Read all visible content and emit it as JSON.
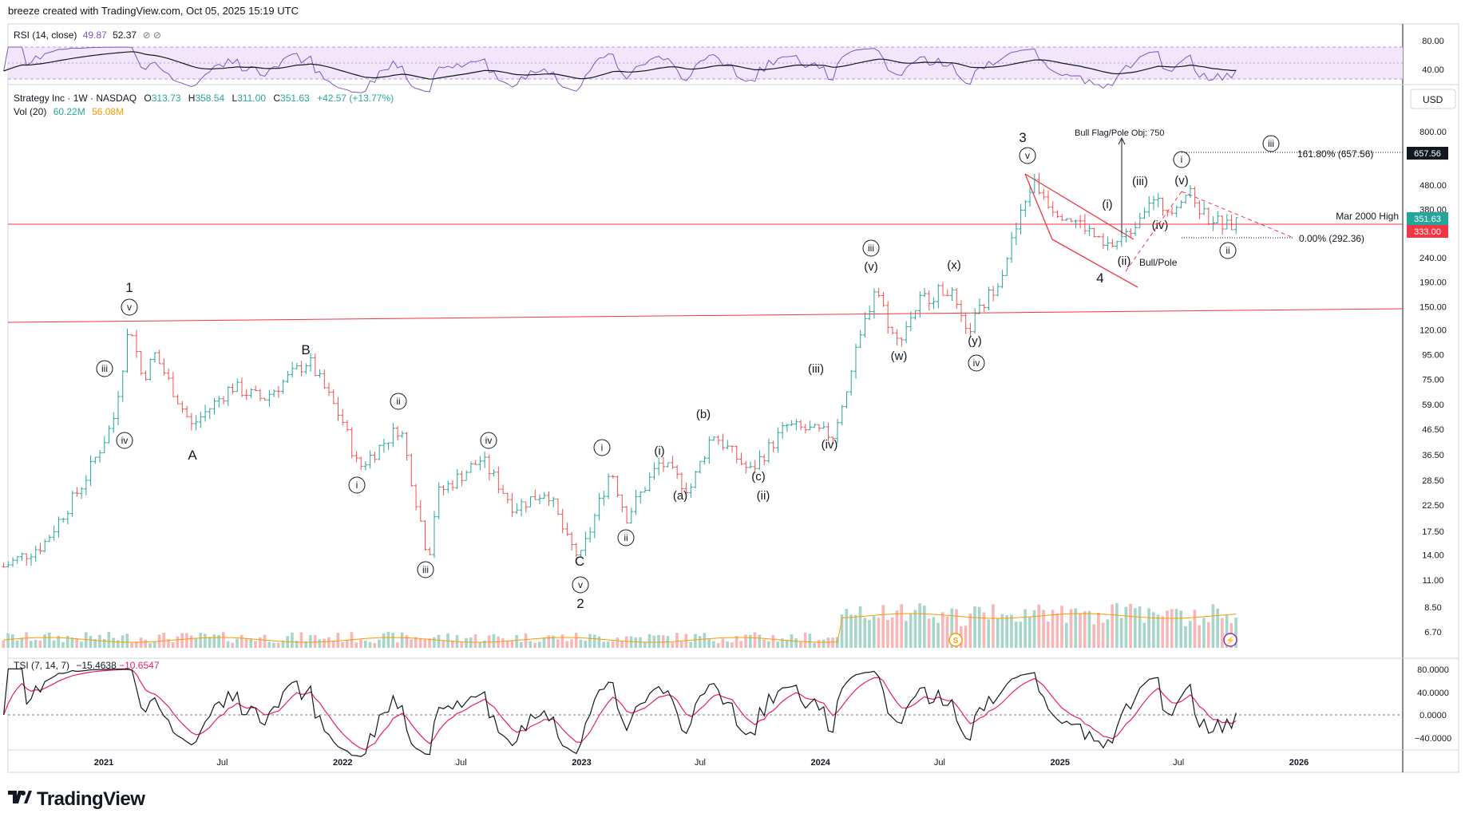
{
  "header": {
    "credit": "breeze created with TradingView.com, Oct 05, 2025 15:19 UTC"
  },
  "footer": {
    "brand": "TradingView",
    "logo_icon": "tradingview-logo-icon"
  },
  "colors": {
    "up": "#26a69a",
    "down": "#ef5350",
    "vol_up": "#a5d6c9",
    "vol_down": "#f7b7b7",
    "rsi_band_fill": "#f3e6fb",
    "rsi_line": "#7e57c2",
    "rsi_ma": "#131722",
    "hline": "#f23645",
    "tsi_line": "#131722",
    "tsi_signal": "#e91e63",
    "vol_ma": "#ff9800",
    "price_box": "#26a69a",
    "level_box": "#f23645",
    "target_box": "#131722"
  },
  "legend": {
    "rsi": {
      "name": "RSI (14, close)",
      "v1": "49.87",
      "v2": "52.37",
      "icons": "⊘ ⊘"
    },
    "main": {
      "symbol": "Strategy Inc · 1W · NASDAQ",
      "o_label": "O",
      "o": "313.73",
      "h_label": "H",
      "h": "358.54",
      "l_label": "L",
      "l": "311.00",
      "c_label": "C",
      "c": "351.63",
      "chg": "+42.57 (+13.77%)"
    },
    "vol": {
      "name": "Vol (20)",
      "v1": "60.22M",
      "v2": "56.08M"
    },
    "tsi": {
      "name": "TSI (7, 14, 7)",
      "v1": "−15.4638",
      "v2": "−10.6547"
    }
  },
  "axes": {
    "currency": "USD",
    "rsi_ticks": [
      "80.00",
      "40.00"
    ],
    "price_ticks": [
      "800.00",
      "480.00",
      "380.00",
      "240.00",
      "190.00",
      "150.00",
      "120.00",
      "95.00",
      "75.00",
      "59.00",
      "46.50",
      "36.50",
      "28.50",
      "22.50",
      "17.50",
      "14.00",
      "11.00",
      "8.50",
      "6.70"
    ],
    "tsi_ticks": [
      "80.0000",
      "40.0000",
      "0.0000",
      "−40.0000"
    ],
    "time_ticks": [
      "2021",
      "Jul",
      "2022",
      "Jul",
      "2023",
      "Jul",
      "2024",
      "Jul",
      "2025",
      "Jul",
      "2026"
    ]
  },
  "price_labels": {
    "last": "351.63",
    "level": "333.00",
    "target": "657.56"
  },
  "annotations": {
    "mar2000": "Mar 2000 High",
    "fib161": "161.80% (657.56)",
    "fib0": "0.00% (292.36)",
    "bullflag": "Bull Flag/Pole Obj: 750",
    "bullpole": "Bull/Pole",
    "waves": [
      {
        "t": "1",
        "c": false
      },
      {
        "t": "v",
        "c": true
      },
      {
        "t": "iii",
        "c": true
      },
      {
        "t": "iv",
        "c": true
      },
      {
        "t": "A",
        "c": false
      },
      {
        "t": "B",
        "c": false
      },
      {
        "t": "ii",
        "c": true
      },
      {
        "t": "i",
        "c": true
      },
      {
        "t": "iii",
        "c": true
      },
      {
        "t": "iv",
        "c": true
      },
      {
        "t": "C",
        "c": false
      },
      {
        "t": "v",
        "c": true
      },
      {
        "t": "2",
        "c": false
      },
      {
        "t": "i",
        "c": true
      },
      {
        "t": "ii",
        "c": true
      },
      {
        "t": "(i)",
        "c": false
      },
      {
        "t": "(a)",
        "c": false
      },
      {
        "t": "(b)",
        "c": false
      },
      {
        "t": "(c)",
        "c": false
      },
      {
        "t": "(ii)",
        "c": false
      },
      {
        "t": "(iii)",
        "c": false
      },
      {
        "t": "(iv)",
        "c": false
      },
      {
        "t": "iii",
        "c": true
      },
      {
        "t": "(v)",
        "c": false
      },
      {
        "t": "(w)",
        "c": false
      },
      {
        "t": "(x)",
        "c": false
      },
      {
        "t": "(y)",
        "c": false
      },
      {
        "t": "iv",
        "c": true
      },
      {
        "t": "3",
        "c": false
      },
      {
        "t": "v",
        "c": true
      },
      {
        "t": "4",
        "c": false
      },
      {
        "t": "(i)",
        "c": false
      },
      {
        "t": "(ii)",
        "c": false
      },
      {
        "t": "(iii)",
        "c": false
      },
      {
        "t": "(iv)",
        "c": false
      },
      {
        "t": "(v)",
        "c": false
      },
      {
        "t": "i",
        "c": true
      },
      {
        "t": "ii",
        "c": true
      },
      {
        "t": "iii",
        "c": true
      }
    ],
    "markers": [
      {
        "t": "S"
      },
      {
        "t": "⚡"
      }
    ]
  },
  "chart_data": {
    "type": "candlestick",
    "title": "Strategy Inc · 1W · NASDAQ",
    "scale": "log",
    "ylim": [
      5.8,
      1000
    ],
    "x_range": [
      "2020-08",
      "2026-04"
    ],
    "anchors": [
      [
        "2020-08-01",
        12.5
      ],
      [
        "2020-10-01",
        15.5
      ],
      [
        "2020-12-01",
        28
      ],
      [
        "2021-01-15",
        50
      ],
      [
        "2021-02-10",
        130
      ],
      [
        "2021-03-01",
        75
      ],
      [
        "2021-03-20",
        95
      ],
      [
        "2021-05-15",
        48
      ],
      [
        "2021-07-15",
        70
      ],
      [
        "2021-09-01",
        62
      ],
      [
        "2021-11-10",
        90
      ],
      [
        "2022-01-01",
        50
      ],
      [
        "2022-01-25",
        32
      ],
      [
        "2022-03-30",
        48
      ],
      [
        "2022-05-12",
        13.5
      ],
      [
        "2022-05-25",
        25
      ],
      [
        "2022-08-01",
        35
      ],
      [
        "2022-09-20",
        22
      ],
      [
        "2022-11-10",
        26
      ],
      [
        "2022-12-10",
        16
      ],
      [
        "2022-12-30",
        13.5
      ],
      [
        "2023-02-15",
        32
      ],
      [
        "2023-03-10",
        20
      ],
      [
        "2023-05-01",
        34
      ],
      [
        "2023-06-15",
        26
      ],
      [
        "2023-07-20",
        45
      ],
      [
        "2023-09-15",
        31
      ],
      [
        "2023-11-10",
        48
      ],
      [
        "2024-01-20",
        44
      ],
      [
        "2024-03-25",
        185
      ],
      [
        "2024-04-25",
        105
      ],
      [
        "2024-06-01",
        160
      ],
      [
        "2024-07-15",
        180
      ],
      [
        "2024-08-10",
        115
      ],
      [
        "2024-10-01",
        200
      ],
      [
        "2024-11-20",
        500
      ],
      [
        "2024-12-20",
        390
      ],
      [
        "2025-02-10",
        320
      ],
      [
        "2025-03-10",
        260
      ],
      [
        "2025-04-15",
        300
      ],
      [
        "2025-05-15",
        420
      ],
      [
        "2025-06-15",
        380
      ],
      [
        "2025-07-15",
        450
      ],
      [
        "2025-08-10",
        360
      ],
      [
        "2025-09-15",
        320
      ],
      [
        "2025-10-03",
        351.63
      ]
    ],
    "last_bar": {
      "open": 313.73,
      "high": 358.54,
      "low": 311.0,
      "close": 351.63,
      "change": 42.57,
      "change_pct": 13.77
    },
    "horizontal_levels": [
      {
        "name": "Mar 2000 High",
        "value": 333.0
      },
      {
        "name": "161.80%",
        "value": 657.56
      },
      {
        "name": "0.00%",
        "value": 292.36
      }
    ],
    "volume": {
      "last": "60.22M",
      "ma20": "56.08M"
    },
    "rsi": {
      "last": 49.87,
      "ma": 52.37,
      "ylim": [
        20,
        100
      ]
    },
    "tsi": {
      "last": -15.4638,
      "signal": -10.6547,
      "ylim": [
        -60,
        100
      ]
    }
  }
}
